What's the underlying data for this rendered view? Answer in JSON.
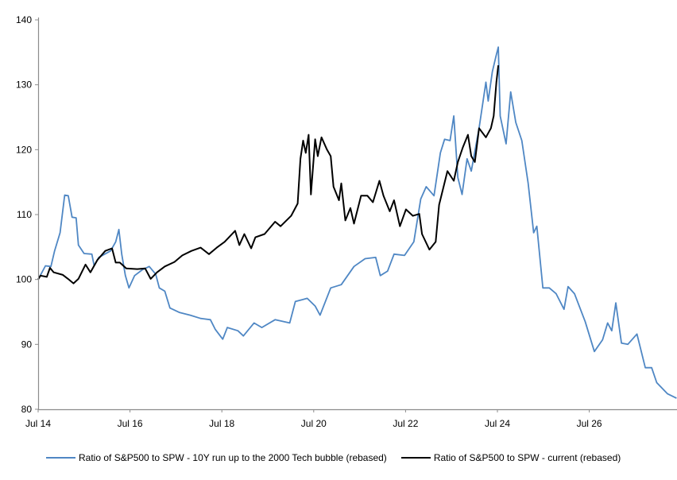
{
  "chart_data": {
    "type": "line",
    "title": "",
    "xlabel": "",
    "ylabel": "",
    "ylim": [
      80,
      140
    ],
    "xlim": [
      "2014-07-01",
      "2028-06-01"
    ],
    "yticks": [
      80,
      90,
      100,
      110,
      120,
      130,
      140
    ],
    "xticks": [
      {
        "date": "2014-07-01",
        "label": "Jul 14"
      },
      {
        "date": "2016-07-01",
        "label": "Jul 16"
      },
      {
        "date": "2018-07-01",
        "label": "Jul 18"
      },
      {
        "date": "2020-07-01",
        "label": "Jul 20"
      },
      {
        "date": "2022-07-01",
        "label": "Jul 22"
      },
      {
        "date": "2024-07-01",
        "label": "Jul 24"
      },
      {
        "date": "2026-07-01",
        "label": "Jul 26"
      }
    ],
    "grid": false,
    "legend_position": "bottom",
    "series": [
      {
        "name": "Ratio of S&P500 to SPW - 10Y run up to the 2000 Tech bubble (rebased)",
        "color": "#4f87c4",
        "x": [
          "2014-07-01",
          "2014-08-28",
          "2014-10-11",
          "2014-11-10",
          "2014-12-23",
          "2015-01-29",
          "2015-02-27",
          "2015-03-27",
          "2015-04-29",
          "2015-05-17",
          "2015-07-01",
          "2015-09-02",
          "2015-09-20",
          "2015-10-26",
          "2016-01-29",
          "2016-03-09",
          "2016-04-04",
          "2016-04-26",
          "2016-05-25",
          "2016-06-23",
          "2016-08-07",
          "2016-10-08",
          "2016-12-02",
          "2017-01-23",
          "2017-02-21",
          "2017-04-04",
          "2017-05-14",
          "2017-07-30",
          "2017-10-23",
          "2018-01-15",
          "2018-04-01",
          "2018-05-10",
          "2018-07-08",
          "2018-08-14",
          "2018-11-07",
          "2018-12-20",
          "2019-03-13",
          "2019-05-14",
          "2019-08-28",
          "2019-12-23",
          "2020-02-07",
          "2020-05-10",
          "2020-07-12",
          "2020-08-21",
          "2020-11-14",
          "2021-02-07",
          "2021-05-17",
          "2021-08-14",
          "2021-11-07",
          "2021-12-13",
          "2022-02-10",
          "2022-04-01",
          "2022-06-23",
          "2022-09-06",
          "2022-10-30",
          "2022-12-13",
          "2023-02-14",
          "2023-04-04",
          "2023-05-07",
          "2023-06-20",
          "2023-07-19",
          "2023-08-21",
          "2023-09-24",
          "2023-11-03",
          "2023-12-06",
          "2024-02-07",
          "2024-04-01",
          "2024-04-19",
          "2024-05-21",
          "2024-06-20",
          "2024-07-08",
          "2024-07-23",
          "2024-09-09",
          "2024-10-15",
          "2024-11-25",
          "2025-01-12",
          "2025-03-02",
          "2025-04-15",
          "2025-05-10",
          "2025-06-27",
          "2025-08-18",
          "2025-10-11",
          "2025-12-13",
          "2026-01-15",
          "2026-03-05",
          "2026-05-29",
          "2026-08-11",
          "2026-10-15",
          "2026-11-25",
          "2026-12-27",
          "2027-01-29",
          "2027-03-13",
          "2027-05-03",
          "2027-07-15",
          "2027-09-20",
          "2027-11-10",
          "2027-12-20",
          "2028-03-13",
          "2028-05-25"
        ],
        "y": [
          100,
          102.1,
          102,
          104.4,
          107.2,
          113,
          112.9,
          109.6,
          109.5,
          105.3,
          104,
          103.9,
          102.1,
          103.4,
          104.4,
          105.8,
          107.7,
          103.9,
          100.6,
          98.7,
          100.6,
          101.5,
          102,
          100.8,
          98.7,
          98.2,
          95.6,
          94.9,
          94.5,
          94,
          93.8,
          92.3,
          90.8,
          92.6,
          92.1,
          91.3,
          93.3,
          92.6,
          93.8,
          93.3,
          96.6,
          97.1,
          95.9,
          94.5,
          98.7,
          99.2,
          102,
          103.2,
          103.4,
          100.6,
          101.3,
          103.9,
          103.7,
          105.8,
          112.4,
          114.3,
          112.9,
          119.5,
          121.6,
          121.4,
          125.2,
          115.7,
          113.1,
          118.6,
          116.7,
          123.3,
          130.4,
          127.5,
          132,
          134.4,
          135.8,
          125.2,
          120.9,
          128.9,
          124.2,
          121.4,
          114.8,
          107.2,
          108.2,
          98.7,
          98.7,
          97.8,
          95.4,
          98.9,
          97.8,
          93.5,
          88.9,
          90.7,
          93.3,
          92.1,
          96.4,
          90.2,
          90,
          91.6,
          86.4,
          86.4,
          84.1,
          82.4,
          81.7
        ]
      },
      {
        "name": "Ratio of S&P500 to SPW - current (rebased)",
        "color": "#000000",
        "x": [
          "2014-07-01",
          "2014-07-19",
          "2014-09-09",
          "2014-10-04",
          "2014-11-03",
          "2015-01-15",
          "2015-02-25",
          "2015-04-08",
          "2015-05-17",
          "2015-07-12",
          "2015-08-21",
          "2015-10-15",
          "2015-12-17",
          "2016-02-10",
          "2016-03-09",
          "2016-04-11",
          "2016-06-02",
          "2016-08-28",
          "2016-10-30",
          "2016-12-13",
          "2017-02-03",
          "2017-04-04",
          "2017-06-20",
          "2017-08-21",
          "2017-11-03",
          "2018-01-15",
          "2018-03-20",
          "2018-05-21",
          "2018-07-23",
          "2018-10-15",
          "2018-11-18",
          "2018-12-27",
          "2019-02-21",
          "2019-03-24",
          "2019-06-06",
          "2019-08-28",
          "2019-10-11",
          "2020-01-04",
          "2020-02-25",
          "2020-03-17",
          "2020-04-08",
          "2020-04-29",
          "2020-05-21",
          "2020-06-09",
          "2020-07-12",
          "2020-08-03",
          "2020-09-02",
          "2020-10-15",
          "2020-11-14",
          "2020-12-06",
          "2021-01-19",
          "2021-02-07",
          "2021-03-09",
          "2021-04-19",
          "2021-05-17",
          "2021-07-12",
          "2021-09-02",
          "2021-10-15",
          "2021-12-06",
          "2022-01-08",
          "2022-02-27",
          "2022-04-01",
          "2022-05-17",
          "2022-07-04",
          "2022-08-28",
          "2022-10-19",
          "2022-11-10",
          "2023-01-08",
          "2023-02-27",
          "2023-03-24",
          "2023-05-29",
          "2023-07-19",
          "2023-08-21",
          "2023-10-01",
          "2023-11-10",
          "2023-12-06",
          "2024-01-04",
          "2024-02-07",
          "2024-04-01",
          "2024-05-10",
          "2024-06-02",
          "2024-06-23",
          "2024-07-08"
        ],
        "y": [
          100,
          100.6,
          100.4,
          101.8,
          101.1,
          100.7,
          100.1,
          99.4,
          100.1,
          102.3,
          101.1,
          103,
          104.4,
          104.8,
          102.6,
          102.6,
          101.7,
          101.6,
          101.7,
          100.1,
          101.1,
          102,
          102.7,
          103.7,
          104.4,
          104.9,
          103.9,
          104.9,
          105.8,
          107.5,
          105.3,
          107,
          104.8,
          106.5,
          107,
          108.9,
          108.2,
          109.8,
          111.7,
          118.6,
          121.4,
          119.5,
          122.3,
          113.1,
          121.6,
          119,
          121.9,
          120,
          119,
          114.3,
          112.2,
          114.8,
          109.1,
          111,
          108.6,
          112.9,
          112.9,
          111.9,
          115.2,
          112.9,
          110.5,
          112.2,
          108.2,
          110.8,
          109.8,
          110.1,
          107,
          104.6,
          105.8,
          111.5,
          116.7,
          115.2,
          118.1,
          120.4,
          122.3,
          119,
          118.1,
          123.3,
          121.9,
          123.3,
          125.2,
          130.4,
          133
        ]
      }
    ]
  }
}
